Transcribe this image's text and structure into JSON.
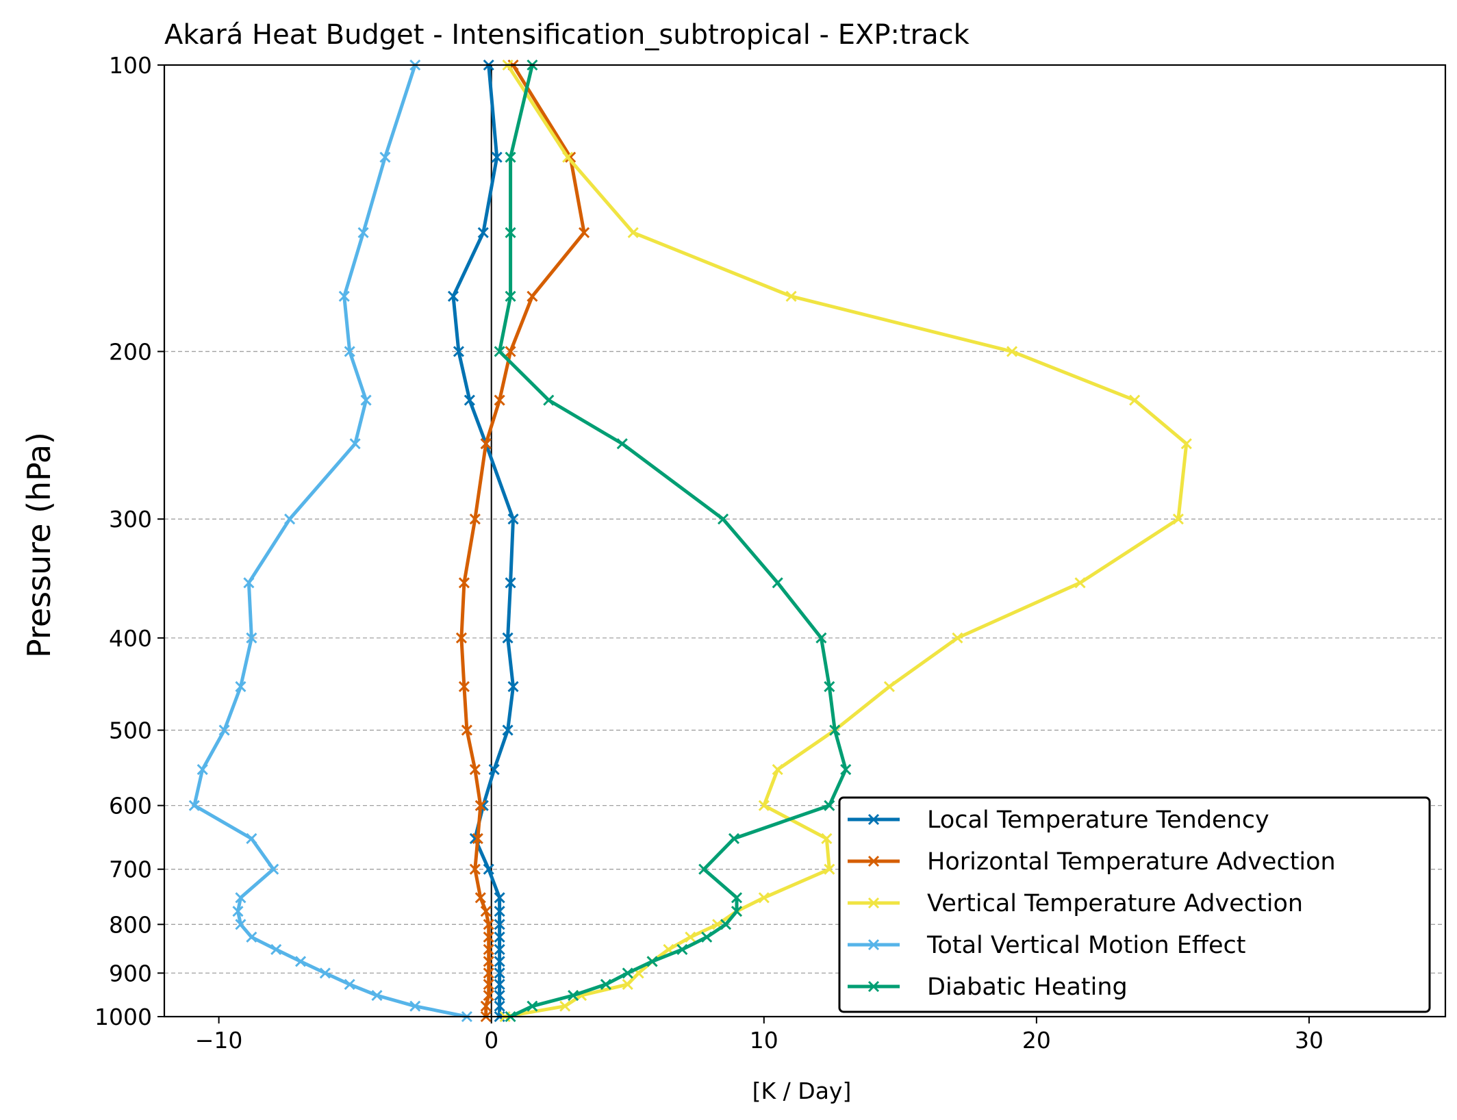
{
  "chart_data": {
    "type": "line",
    "title": "Akará Heat Budget - Intensification_subtropical - EXP:track",
    "xlabel": "[K / Day]",
    "ylabel": "Pressure (hPa)",
    "xlim": [
      -12,
      35
    ],
    "ylim": [
      1000,
      100
    ],
    "y_scale": "log",
    "y_inverted": true,
    "x_ticks": [
      -10,
      0,
      10,
      20,
      30
    ],
    "x_tick_labels": [
      "−10",
      "0",
      "10",
      "20",
      "30"
    ],
    "y_ticks": [
      100,
      200,
      300,
      400,
      500,
      600,
      700,
      800,
      900,
      1000
    ],
    "y_tick_labels": [
      "100",
      "200",
      "300",
      "400",
      "500",
      "600",
      "700",
      "800",
      "900",
      "1000"
    ],
    "grid": "horizontal dashed at y ticks",
    "zero_line": true,
    "legend_position": "lower-right",
    "pressure_levels": [
      1000,
      975,
      950,
      925,
      900,
      875,
      850,
      825,
      800,
      775,
      750,
      700,
      650,
      600,
      550,
      500,
      450,
      400,
      350,
      300,
      250,
      225,
      200,
      175,
      150,
      125,
      100
    ],
    "series": [
      {
        "name": "Local Temperature Tendency",
        "color": "#0072B2",
        "values": [
          0.3,
          0.3,
          0.3,
          0.3,
          0.3,
          0.3,
          0.3,
          0.3,
          0.3,
          0.3,
          0.3,
          -0.1,
          -0.6,
          -0.3,
          0.1,
          0.6,
          0.8,
          0.6,
          0.7,
          0.8,
          -0.2,
          -0.8,
          -1.2,
          -1.4,
          -0.3,
          0.2,
          -0.1
        ]
      },
      {
        "name": "Horizontal Temperature Advection",
        "color": "#D55E00",
        "values": [
          -0.2,
          -0.2,
          -0.1,
          -0.1,
          -0.1,
          -0.1,
          -0.1,
          -0.1,
          -0.1,
          -0.2,
          -0.4,
          -0.6,
          -0.5,
          -0.4,
          -0.6,
          -0.9,
          -1.0,
          -1.1,
          -1.0,
          -0.6,
          -0.2,
          0.3,
          0.7,
          1.5,
          3.4,
          2.9,
          0.8
        ]
      },
      {
        "name": "Vertical Temperature Advection",
        "color": "#F0E442",
        "values": [
          0.5,
          2.7,
          3.3,
          5.0,
          5.4,
          5.9,
          6.5,
          7.3,
          8.3,
          9.0,
          10.0,
          12.4,
          12.3,
          10.0,
          10.5,
          12.6,
          14.6,
          17.1,
          21.6,
          25.2,
          25.5,
          23.6,
          19.1,
          11.0,
          5.2,
          2.8,
          0.6
        ]
      },
      {
        "name": "Total Vertical Motion Effect",
        "color": "#56B4E9",
        "values": [
          -0.9,
          -2.8,
          -4.2,
          -5.2,
          -6.1,
          -7.0,
          -7.9,
          -8.8,
          -9.2,
          -9.3,
          -9.2,
          -8.0,
          -8.8,
          -10.9,
          -10.6,
          -9.8,
          -9.2,
          -8.8,
          -8.9,
          -7.4,
          -5.0,
          -4.6,
          -5.2,
          -5.4,
          -4.7,
          -3.9,
          -2.8
        ]
      },
      {
        "name": "Diabatic Heating",
        "color": "#009E73",
        "values": [
          0.7,
          1.5,
          3.0,
          4.2,
          5.0,
          5.9,
          7.0,
          7.9,
          8.6,
          9.0,
          9.0,
          7.8,
          8.9,
          12.4,
          13.0,
          12.6,
          12.4,
          12.1,
          10.5,
          8.5,
          4.8,
          2.1,
          0.3,
          0.7,
          0.7,
          0.7,
          1.5
        ]
      }
    ]
  }
}
